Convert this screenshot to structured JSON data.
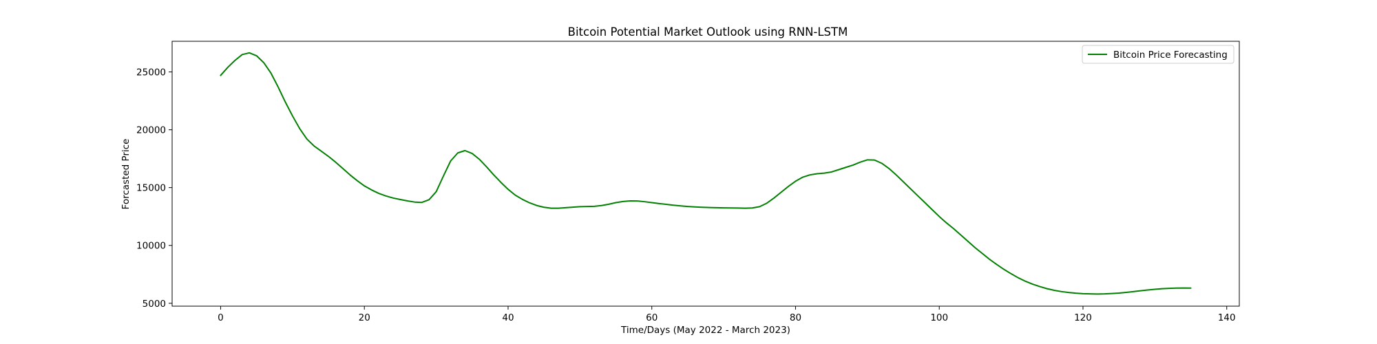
{
  "chart_data": {
    "type": "line",
    "title": "Bitcoin Potential Market Outlook using RNN-LSTM",
    "xlabel": "Time/Days (May 2022 - March 2023)",
    "ylabel": "Forcasted Price",
    "xlim": [
      -6.75,
      141.75
    ],
    "ylim": [
      4750,
      27650
    ],
    "x_ticks": [
      0,
      20,
      40,
      60,
      80,
      100,
      120,
      140
    ],
    "y_ticks": [
      5000,
      10000,
      15000,
      20000,
      25000
    ],
    "x_tick_labels": [
      "0",
      "20",
      "40",
      "60",
      "80",
      "100",
      "120",
      "140"
    ],
    "y_tick_labels": [
      "5000",
      "10000",
      "15000",
      "20000",
      "25000"
    ],
    "grid": false,
    "legend_position": "top-right",
    "series": [
      {
        "name": "Bitcoin Price Forecasting",
        "color": "#008000",
        "x": [
          0,
          1,
          2,
          3,
          4,
          5,
          6,
          7,
          8,
          9,
          10,
          11,
          12,
          13,
          14,
          15,
          16,
          17,
          18,
          19,
          20,
          21,
          22,
          23,
          24,
          25,
          26,
          27,
          28,
          29,
          30,
          31,
          32,
          33,
          34,
          35,
          36,
          37,
          38,
          39,
          40,
          41,
          42,
          43,
          44,
          45,
          46,
          47,
          48,
          49,
          50,
          51,
          52,
          53,
          54,
          55,
          56,
          57,
          58,
          59,
          60,
          61,
          62,
          63,
          64,
          65,
          66,
          67,
          68,
          69,
          70,
          71,
          72,
          73,
          74,
          75,
          76,
          77,
          78,
          79,
          80,
          81,
          82,
          83,
          84,
          85,
          86,
          87,
          88,
          89,
          90,
          91,
          92,
          93,
          94,
          95,
          96,
          97,
          98,
          99,
          100,
          101,
          102,
          103,
          104,
          105,
          106,
          107,
          108,
          109,
          110,
          111,
          112,
          113,
          114,
          115,
          116,
          117,
          118,
          119,
          120,
          121,
          122,
          123,
          124,
          125,
          126,
          127,
          128,
          129,
          130,
          131,
          132,
          133,
          134,
          135
        ],
        "values": [
          24700,
          25400,
          26000,
          26500,
          26650,
          26400,
          25800,
          24900,
          23700,
          22400,
          21200,
          20100,
          19200,
          18600,
          18150,
          17700,
          17200,
          16650,
          16100,
          15600,
          15150,
          14800,
          14500,
          14280,
          14100,
          13970,
          13850,
          13750,
          13720,
          13950,
          14650,
          16000,
          17300,
          18000,
          18200,
          17950,
          17450,
          16800,
          16100,
          15450,
          14850,
          14350,
          13980,
          13680,
          13450,
          13300,
          13220,
          13220,
          13260,
          13310,
          13350,
          13370,
          13380,
          13450,
          13560,
          13700,
          13800,
          13850,
          13840,
          13780,
          13700,
          13620,
          13550,
          13480,
          13420,
          13370,
          13330,
          13300,
          13280,
          13260,
          13250,
          13240,
          13230,
          13220,
          13240,
          13350,
          13650,
          14100,
          14600,
          15100,
          15550,
          15900,
          16100,
          16200,
          16250,
          16350,
          16550,
          16750,
          16950,
          17200,
          17400,
          17380,
          17100,
          16650,
          16100,
          15500,
          14900,
          14300,
          13700,
          13100,
          12500,
          11950,
          11450,
          10900,
          10350,
          9800,
          9300,
          8800,
          8350,
          7930,
          7550,
          7200,
          6900,
          6650,
          6440,
          6260,
          6120,
          6010,
          5930,
          5870,
          5830,
          5810,
          5800,
          5810,
          5840,
          5880,
          5940,
          6010,
          6080,
          6150,
          6210,
          6260,
          6290,
          6310,
          6320,
          6310
        ]
      }
    ]
  }
}
